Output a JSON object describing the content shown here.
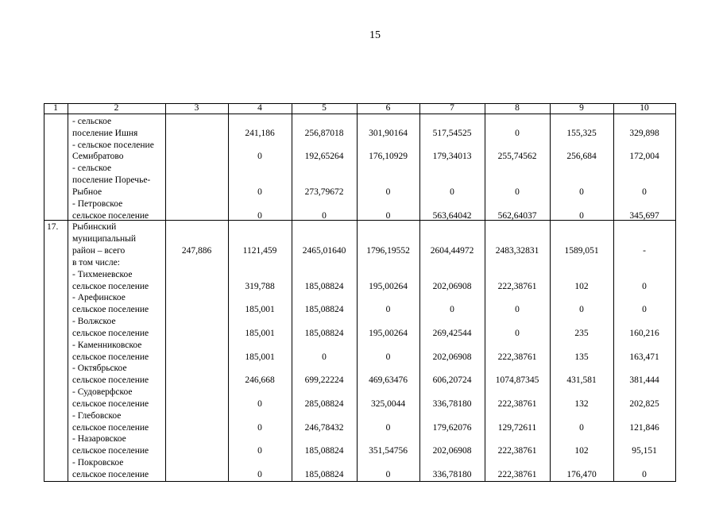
{
  "page_number": "15",
  "table": {
    "header": [
      "1",
      "2",
      "3",
      "4",
      "5",
      "6",
      "7",
      "8",
      "9",
      "10"
    ],
    "rows": [
      {
        "label": [
          "- сельское",
          "поселение Ишня"
        ],
        "cells": [
          "241,186",
          "256,87018",
          "301,90164",
          "517,54525",
          "0",
          "155,325",
          "329,898"
        ]
      },
      {
        "label": [
          "- сельское поселение",
          "Семибратово"
        ],
        "cells": [
          "0",
          "192,65264",
          "176,10929",
          "179,34013",
          "255,74562",
          "256,684",
          "172,004"
        ]
      },
      {
        "label": [
          "- сельское",
          "поселение Поречье-",
          "Рыбное"
        ],
        "cells": [
          "0",
          "273,79672",
          "0",
          "0",
          "0",
          "0",
          "0"
        ]
      },
      {
        "label": [
          "- Петровское",
          "сельское поселение"
        ],
        "cells": [
          "0",
          "0",
          "0",
          "563,64042",
          "562,64037",
          "0",
          "345,697"
        ]
      },
      {
        "number": "17.",
        "label": [
          "Рыбинский",
          "муниципальный",
          "район – всего",
          "в том числе:"
        ],
        "col3": "247,886",
        "cells": [
          "1121,459",
          "2465,01640",
          "1796,19552",
          "2604,44972",
          "2483,32831",
          "1589,051",
          "-"
        ]
      },
      {
        "label": [
          "- Тихменевское",
          "сельское поселение"
        ],
        "cells": [
          "319,788",
          "185,08824",
          "195,00264",
          "202,06908",
          "222,38761",
          "102",
          "0"
        ]
      },
      {
        "label": [
          "- Арефинское",
          "сельское поселение"
        ],
        "cells": [
          "185,001",
          "185,08824",
          "0",
          "0",
          "0",
          "0",
          "0"
        ]
      },
      {
        "label": [
          "- Волжское",
          "сельское поселение"
        ],
        "cells": [
          "185,001",
          "185,08824",
          "195,00264",
          "269,42544",
          "0",
          "235",
          "160,216"
        ]
      },
      {
        "label": [
          "- Каменниковское",
          "сельское поселение"
        ],
        "cells": [
          "185,001",
          "0",
          "0",
          "202,06908",
          "222,38761",
          "135",
          "163,471"
        ]
      },
      {
        "label": [
          "- Октябрьское",
          "сельское поселение"
        ],
        "cells": [
          "246,668",
          "699,22224",
          "469,63476",
          "606,20724",
          "1074,87345",
          "431,581",
          "381,444"
        ]
      },
      {
        "label": [
          "- Судоверфское",
          "сельское поселение"
        ],
        "cells": [
          "0",
          "285,08824",
          "325,0044",
          "336,78180",
          "222,38761",
          "132",
          "202,825"
        ]
      },
      {
        "label": [
          "- Глебовское",
          "сельское поселение"
        ],
        "cells": [
          "0",
          "246,78432",
          "0",
          "179,62076",
          "129,72611",
          "0",
          "121,846"
        ]
      },
      {
        "label": [
          "- Назаровское",
          "сельское поселение"
        ],
        "cells": [
          "0",
          "185,08824",
          "351,54756",
          "202,06908",
          "222,38761",
          "102",
          "95,151"
        ]
      },
      {
        "label": [
          "- Покровское",
          "сельское поселение"
        ],
        "cells": [
          "0",
          "185,08824",
          "0",
          "336,78180",
          "222,38761",
          "176,470",
          "0"
        ]
      }
    ]
  }
}
